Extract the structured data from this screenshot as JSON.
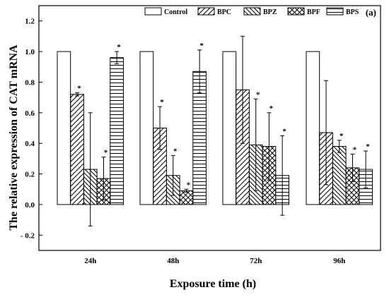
{
  "chart_data": {
    "type": "bar",
    "panel_label": "(a)",
    "xlabel": "Exposure time (h)",
    "ylabel": "The relative expression of CAT mRNA",
    "ylim": [
      -0.3,
      1.3
    ],
    "yticks": [
      -0.2,
      0.0,
      0.2,
      0.4,
      0.6,
      0.8,
      1.0,
      1.2
    ],
    "ytick_labels": [
      "- 0.2",
      "0.0",
      "0.2",
      "0.4",
      "0.6",
      "0.8",
      "1.0",
      "1.2"
    ],
    "categories": [
      "24h",
      "48h",
      "72h",
      "96h"
    ],
    "legend_position": "top-right",
    "grid": false,
    "series": [
      {
        "name": "Control",
        "pattern": "none",
        "values": [
          1.0,
          1.0,
          1.0,
          1.0
        ],
        "errors": [
          0,
          0,
          0,
          0
        ],
        "significance": [
          "",
          "",
          "",
          ""
        ]
      },
      {
        "name": "BPC",
        "pattern": "forward-diagonal",
        "values": [
          0.72,
          0.5,
          0.75,
          0.47
        ],
        "errors": [
          0.01,
          0.14,
          0.35,
          0.34
        ],
        "significance": [
          "*",
          "*",
          "",
          ""
        ]
      },
      {
        "name": "BPZ",
        "pattern": "backward-diagonal",
        "values": [
          0.23,
          0.19,
          0.39,
          0.38
        ],
        "errors": [
          0.37,
          0.13,
          0.3,
          0.04
        ],
        "significance": [
          "",
          "*",
          "*",
          "*"
        ]
      },
      {
        "name": "BPF",
        "pattern": "crosshatch",
        "values": [
          0.17,
          0.09,
          0.38,
          0.24
        ],
        "errors": [
          0.14,
          0.01,
          0.22,
          0.09
        ],
        "significance": [
          "*",
          "*",
          "*",
          "*"
        ]
      },
      {
        "name": "BPS",
        "pattern": "horizontal",
        "values": [
          0.96,
          0.87,
          0.19,
          0.23
        ],
        "errors": [
          0.04,
          0.14,
          0.26,
          0.12
        ],
        "significance": [
          "*",
          "*",
          "*",
          "*"
        ]
      }
    ]
  }
}
